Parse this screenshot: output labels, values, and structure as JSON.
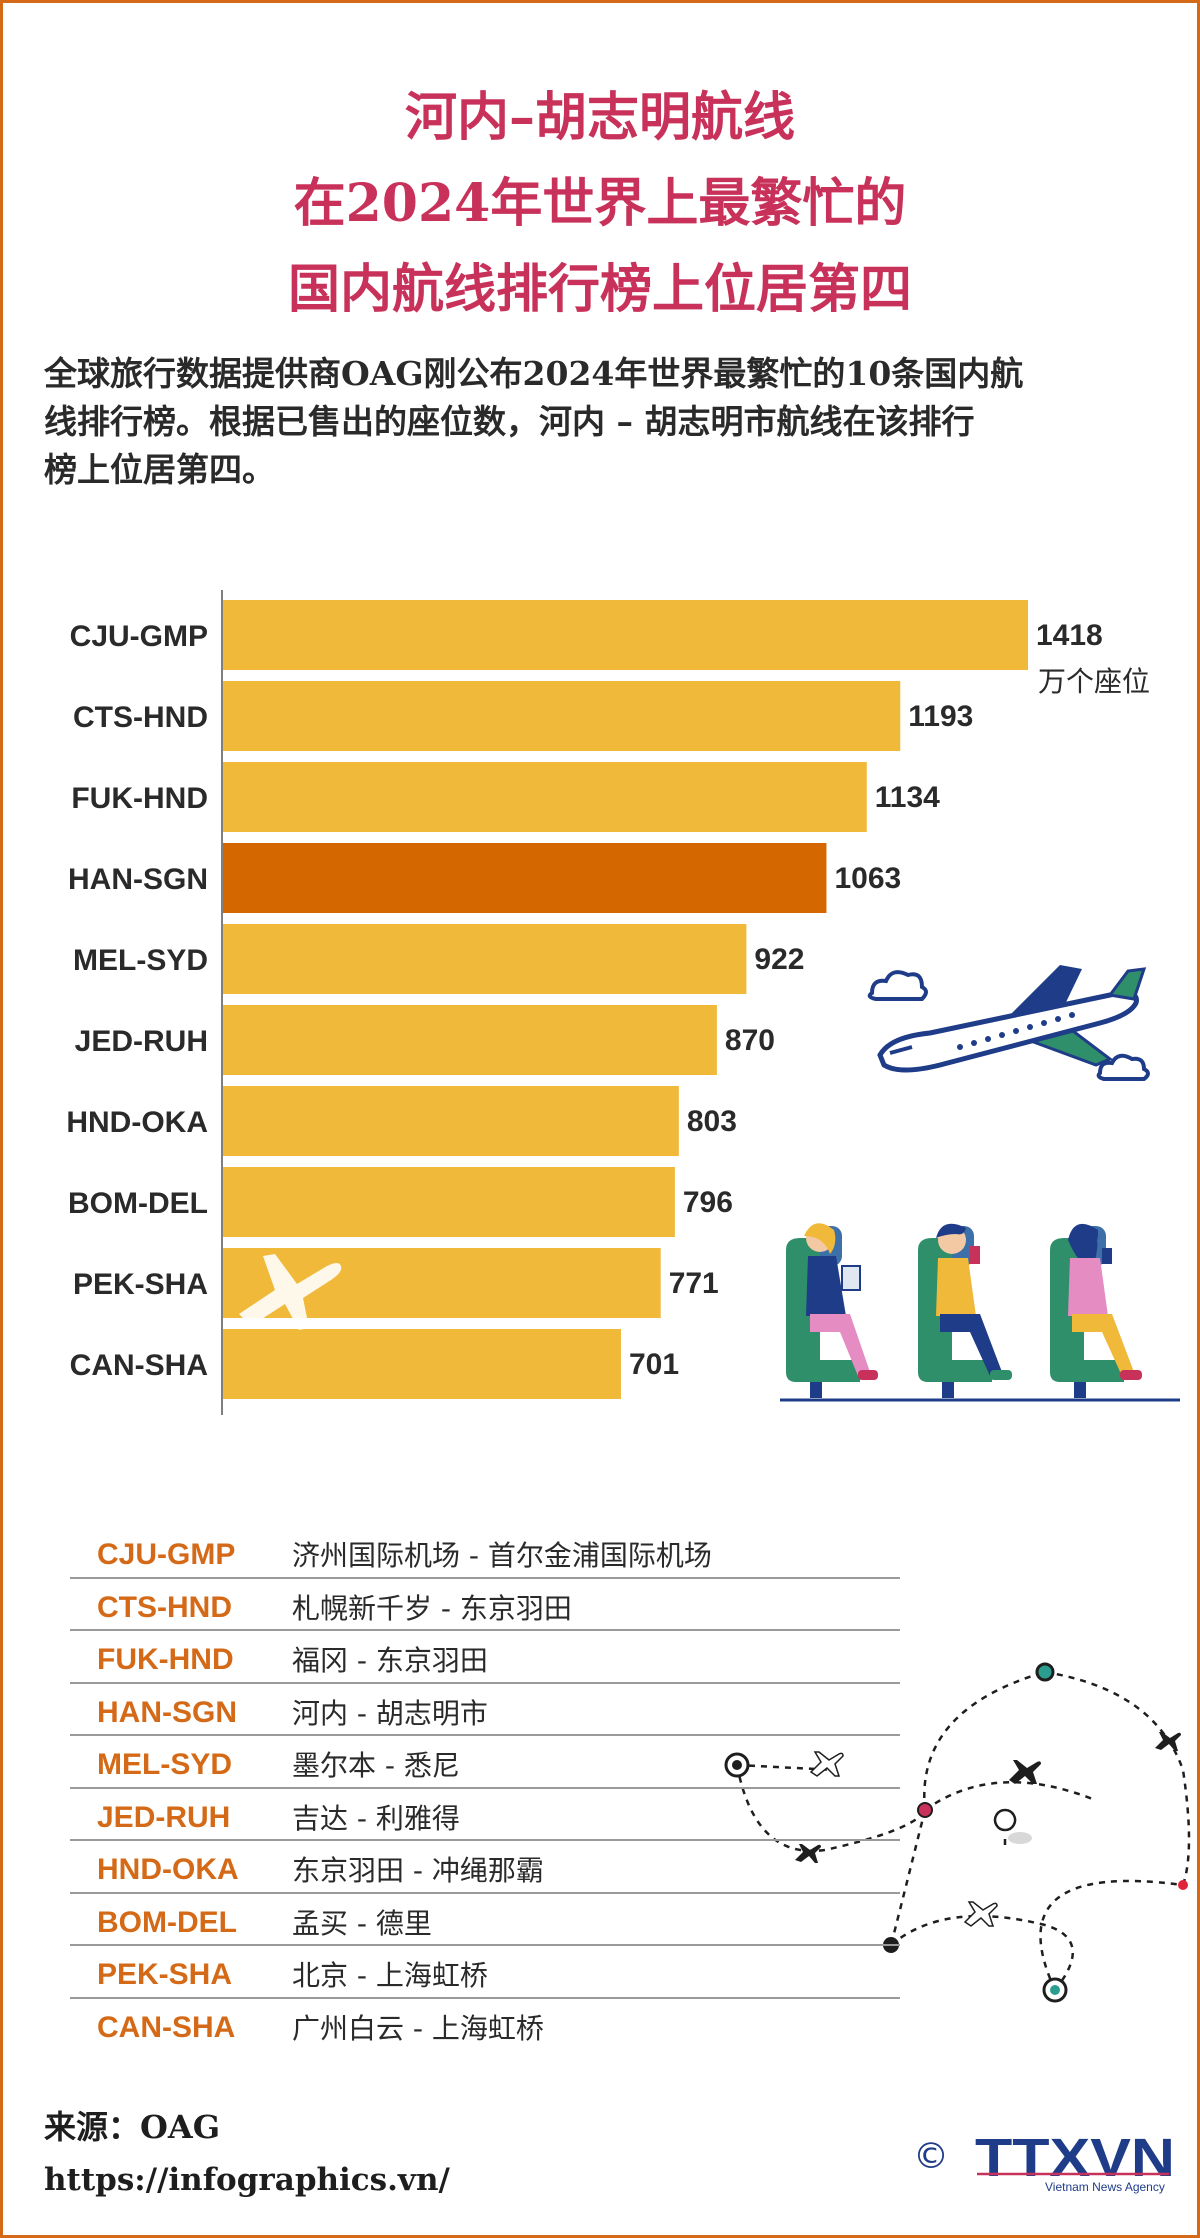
{
  "title_lines": [
    "河内–胡志明航线",
    "在2024年世界上最繁忙的",
    "国内航线排行榜上位居第四"
  ],
  "intro_lines": [
    "全球旅行数据提供商OAG刚公布2024年世界最繁忙的10条国内航",
    "线排行榜。根据已售出的座位数，河内 – 胡志明市航线在该排行",
    "榜上位居第四。"
  ],
  "chart_data": {
    "type": "bar",
    "orientation": "horizontal",
    "unit_label": "万个座位",
    "categories": [
      "CJU-GMP",
      "CTS-HND",
      "FUK-HND",
      "HAN-SGN",
      "MEL-SYD",
      "JED-RUH",
      "HND-OKA",
      "BOM-DEL",
      "PEK-SHA",
      "CAN-SHA"
    ],
    "values": [
      1418,
      1193,
      1134,
      1063,
      922,
      870,
      803,
      796,
      771,
      701
    ],
    "highlight": "HAN-SGN",
    "bar_color": "#f1b93a",
    "highlight_color": "#d56700",
    "grid": false
  },
  "legend": [
    {
      "code": "CJU-GMP",
      "name": "济州国际机场 - 首尔金浦国际机场"
    },
    {
      "code": "CTS-HND",
      "name": "札幌新千岁 - 东京羽田"
    },
    {
      "code": "FUK-HND",
      "name": "福冈 - 东京羽田"
    },
    {
      "code": "HAN-SGN",
      "name": "河内 - 胡志明市"
    },
    {
      "code": "MEL-SYD",
      "name": "墨尔本 - 悉尼"
    },
    {
      "code": "JED-RUH",
      "name": "吉达 - 利雅得"
    },
    {
      "code": "HND-OKA",
      "name": "东京羽田 - 冲绳那霸"
    },
    {
      "code": "BOM-DEL",
      "name": "孟买 - 德里"
    },
    {
      "code": "PEK-SHA",
      "name": "北京 - 上海虹桥"
    },
    {
      "code": "CAN-SHA",
      "name": "广州白云 - 上海虹桥"
    }
  ],
  "source": "来源：OAG",
  "url": "https://infographics.vn/",
  "logo": {
    "copyright": "©",
    "name": "TTXVN",
    "tagline": "Vietnam News Agency"
  },
  "colors": {
    "title": "#c8325a",
    "accent": "#d46a17",
    "bar": "#f1b93a",
    "highlight": "#d56700",
    "logo": "#1f3c88"
  }
}
